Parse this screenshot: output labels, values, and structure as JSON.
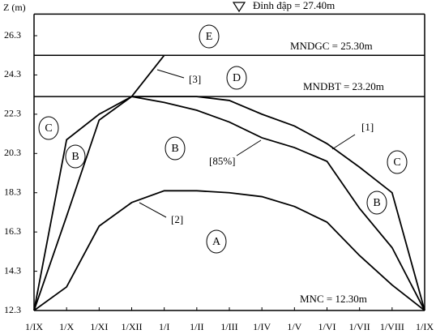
{
  "chart_data": {
    "type": "line",
    "ylabel": "Z (m)",
    "categories": [
      "1/IX",
      "1/X",
      "1/XI",
      "1/XII",
      "1/I",
      "1/II",
      "1/III",
      "1/IV",
      "1/V",
      "1/VI",
      "1/VII",
      "1/VIII",
      "1/IX"
    ],
    "ylim": [
      12.3,
      27.4
    ],
    "yticks": [
      12.3,
      14.3,
      16.3,
      18.3,
      20.3,
      22.3,
      24.3,
      26.3
    ],
    "series": [
      {
        "name": "[1]",
        "color": "#000000",
        "values": [
          12.3,
          21.0,
          22.3,
          23.2,
          23.2,
          23.2,
          23.0,
          22.3,
          21.7,
          20.8,
          19.6,
          18.3,
          12.3
        ]
      },
      {
        "name": "[85%]",
        "color": "#000000",
        "values": [
          12.3,
          17.1,
          22.0,
          23.2,
          22.9,
          22.5,
          21.9,
          21.1,
          20.6,
          19.9,
          17.5,
          15.5,
          12.3
        ]
      },
      {
        "name": "[2]",
        "color": "#000000",
        "values": [
          12.3,
          13.5,
          16.6,
          17.8,
          18.4,
          18.4,
          18.3,
          18.1,
          17.6,
          16.8,
          15.1,
          13.6,
          12.3
        ]
      },
      {
        "name": "[3]",
        "color": "#000000",
        "values": [
          null,
          null,
          null,
          23.2,
          25.3,
          null,
          null,
          null,
          null,
          null,
          null,
          null,
          null
        ]
      }
    ],
    "levels": [
      {
        "value": 27.4,
        "label": "Đỉnh đập = 27.40m"
      },
      {
        "value": 25.3,
        "label": "MNDGC = 25.30m"
      },
      {
        "value": 23.2,
        "label": "MNDBT = 23.20m"
      },
      {
        "value": 12.3,
        "label": "MNC = 12.30m"
      }
    ],
    "zones": [
      "E",
      "D",
      "B",
      "B",
      "B",
      "C",
      "C",
      "A"
    ]
  }
}
